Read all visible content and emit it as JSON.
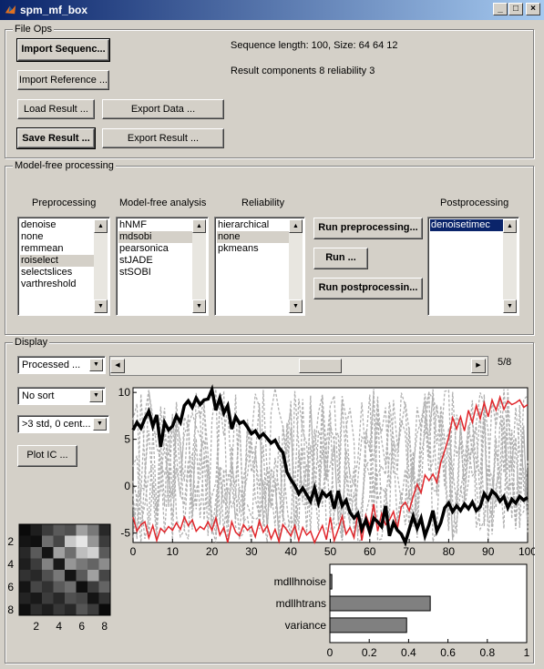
{
  "window": {
    "title": "spm_mf_box",
    "controls": [
      "_",
      "□",
      "×"
    ]
  },
  "file_ops": {
    "title": "File Ops",
    "import_sequence": "Import Sequenc...",
    "import_reference": "Import Reference ...",
    "load_result": "Load Result ...",
    "export_data": "Export Data ...",
    "save_result": "Save Result ...",
    "export_result": "Export Result ...",
    "sequence_info": "Sequence length: 100, Size: 64 64 12",
    "result_info": "Result components 8 reliability 3"
  },
  "model_free": {
    "title": "Model-free processing",
    "preprocessing": {
      "label": "Preprocessing",
      "items": [
        "denoise",
        "none",
        "remmean",
        "roiselect",
        "selectslices",
        "varthreshold"
      ],
      "selected_index": 3
    },
    "analysis": {
      "label": "Model-free analysis",
      "items": [
        "hNMF",
        "mdsobi",
        "pearsonica",
        "stJADE",
        "stSOBI"
      ],
      "selected_index": 1
    },
    "reliability": {
      "label": "Reliability",
      "items": [
        "hierarchical",
        "none",
        "pkmeans"
      ],
      "selected_index": 1
    },
    "postprocessing": {
      "label": "Postprocessing",
      "items": [
        "denoisetimec"
      ],
      "selected_index": 0
    },
    "run_preprocessing": "Run preprocessing...",
    "run": "Run ...",
    "run_postprocessing": "Run postprocessin..."
  },
  "display": {
    "title": "Display",
    "mode_popup": "Processed ...",
    "sort_popup": "No sort",
    "threshold_popup": ">3 std, 0 cent...",
    "plot_ic": "Plot IC ...",
    "slider_value": 5,
    "slider_max": 8,
    "slider_label": "5/8"
  },
  "timecourse_chart": {
    "type": "line",
    "xlim": [
      0,
      100
    ],
    "ylim": [
      -6,
      10.5
    ],
    "x_ticks": [
      "0",
      "10",
      "20",
      "30",
      "40",
      "50",
      "60",
      "70",
      "80",
      "90",
      "100"
    ],
    "y_ticks": [
      "10",
      "5",
      "0",
      "-5"
    ],
    "colors": {
      "black": "#000000",
      "red": "#e0262b",
      "grey": "#b0b0b0"
    }
  },
  "matrix_chart": {
    "type": "heatmap",
    "x_ticks": [
      "2",
      "4",
      "6",
      "8"
    ],
    "y_ticks": [
      "2",
      "4",
      "6",
      "8"
    ]
  },
  "bar_chart": {
    "type": "bar",
    "categories": [
      "mdllhnoise",
      "mdllhtrans",
      "variance"
    ],
    "values": [
      0.01,
      0.51,
      0.39
    ],
    "xlim": [
      0,
      1
    ],
    "x_ticks": [
      "0",
      "0.2",
      "0.4",
      "0.6",
      "0.8",
      "1"
    ],
    "bar_color": "#808080"
  },
  "chart_data": [
    {
      "type": "line",
      "xlim": [
        0,
        100
      ],
      "ylim": [
        -6,
        10.5
      ],
      "series": [
        {
          "values_black": [
            6,
            6.8,
            6.2,
            7.2,
            8,
            6.4,
            7.6,
            4.2,
            6.8,
            6,
            6.4,
            7.5,
            6.8,
            8.6,
            9.1,
            8.4,
            9.4,
            8.7,
            9.2,
            9.3,
            10.3,
            8.1,
            9.4,
            7.8,
            8.6,
            6.1,
            7.4,
            6.7,
            6.9,
            6.3,
            5.6,
            5.9,
            5.2,
            5.6,
            5.1,
            4.6,
            4.9,
            4.1,
            3.6,
            1.5,
            0.7,
            0.1,
            -0.8,
            -0.2,
            -0.9,
            -1.6,
            -0.2,
            -1.8,
            -0.6,
            -1.1,
            -0.7,
            -2.4,
            -0.5,
            -2.1,
            -1.5,
            -2.8,
            -3.4,
            -2.9,
            -4.6,
            -3.6,
            -4.9,
            -3.4,
            -3.8,
            -4.3,
            -2.1,
            -5.3,
            -3.9,
            -4.7,
            -5.1,
            -6,
            -4.6,
            -3.2,
            -4.5,
            -3.4,
            -5.3,
            -4.1,
            -2.6,
            -4.8,
            -3.9,
            -2.3,
            -1.8,
            -2.7,
            -2.1,
            -2.6,
            -1.9,
            -2.4,
            -1.7,
            -2.6,
            -2.2,
            -0.8,
            -1.4,
            -0.5,
            -0.9,
            -1.6,
            -1.1,
            -2.3,
            -1.4,
            -1.8,
            -1.1,
            -1.5,
            -1.2
          ]
        },
        {
          "values_red": [
            -3.3,
            -4.8,
            -4.1,
            -3.8,
            -5.5,
            -4.2,
            -5.8,
            -4.5,
            -4.9,
            -4.3,
            -4.7,
            -3.9,
            -4.6,
            -3.3,
            -4.2,
            -3.6,
            -4.8,
            -4.3,
            -4.6,
            -3.8,
            -4.7,
            -3.4,
            -5.2,
            -4.4,
            -6,
            -3.8,
            -4.9,
            -5.3,
            -4.1,
            -4.7,
            -4.3,
            -5.4,
            -3.7,
            -4.9,
            -4.2,
            -5.6,
            -4.6,
            -5.9,
            -4.1,
            -4.7,
            -5.3,
            -4.2,
            -5.8,
            -4.4,
            -5.2,
            -4.8,
            -6,
            -5.1,
            -4.2,
            -5.7,
            -3.3,
            -5.8,
            -4.6,
            -3.2,
            -5.1,
            -4.4,
            -5.5,
            -2.8,
            -5.8,
            -3.1,
            -4.2,
            -1.9,
            -4.8,
            -2.9,
            -4.1,
            -3.6,
            -2.7,
            -4.5,
            -2.2,
            -1.7,
            -2.6,
            -1.1,
            0.2,
            -0.7,
            1.2,
            0.6,
            1.3,
            0.4,
            2.5,
            3.8,
            5.2,
            7.3,
            6.1,
            7.4,
            5.9,
            8.1,
            6.8,
            8.6,
            7.2,
            8.9,
            7.4,
            9.2,
            8.1,
            9.5,
            8.2,
            9.1,
            8.7,
            8.9,
            9.2,
            8.4,
            8.7
          ]
        }
      ]
    },
    {
      "type": "heatmap",
      "x_ticks": [
        "2",
        "4",
        "6",
        "8"
      ],
      "y_ticks": [
        "2",
        "4",
        "6",
        "8"
      ]
    },
    {
      "type": "bar",
      "categories": [
        "mdllhnoise",
        "mdllhtrans",
        "variance"
      ],
      "values": [
        0.01,
        0.51,
        0.39
      ],
      "xlim": [
        0,
        1
      ]
    }
  ]
}
